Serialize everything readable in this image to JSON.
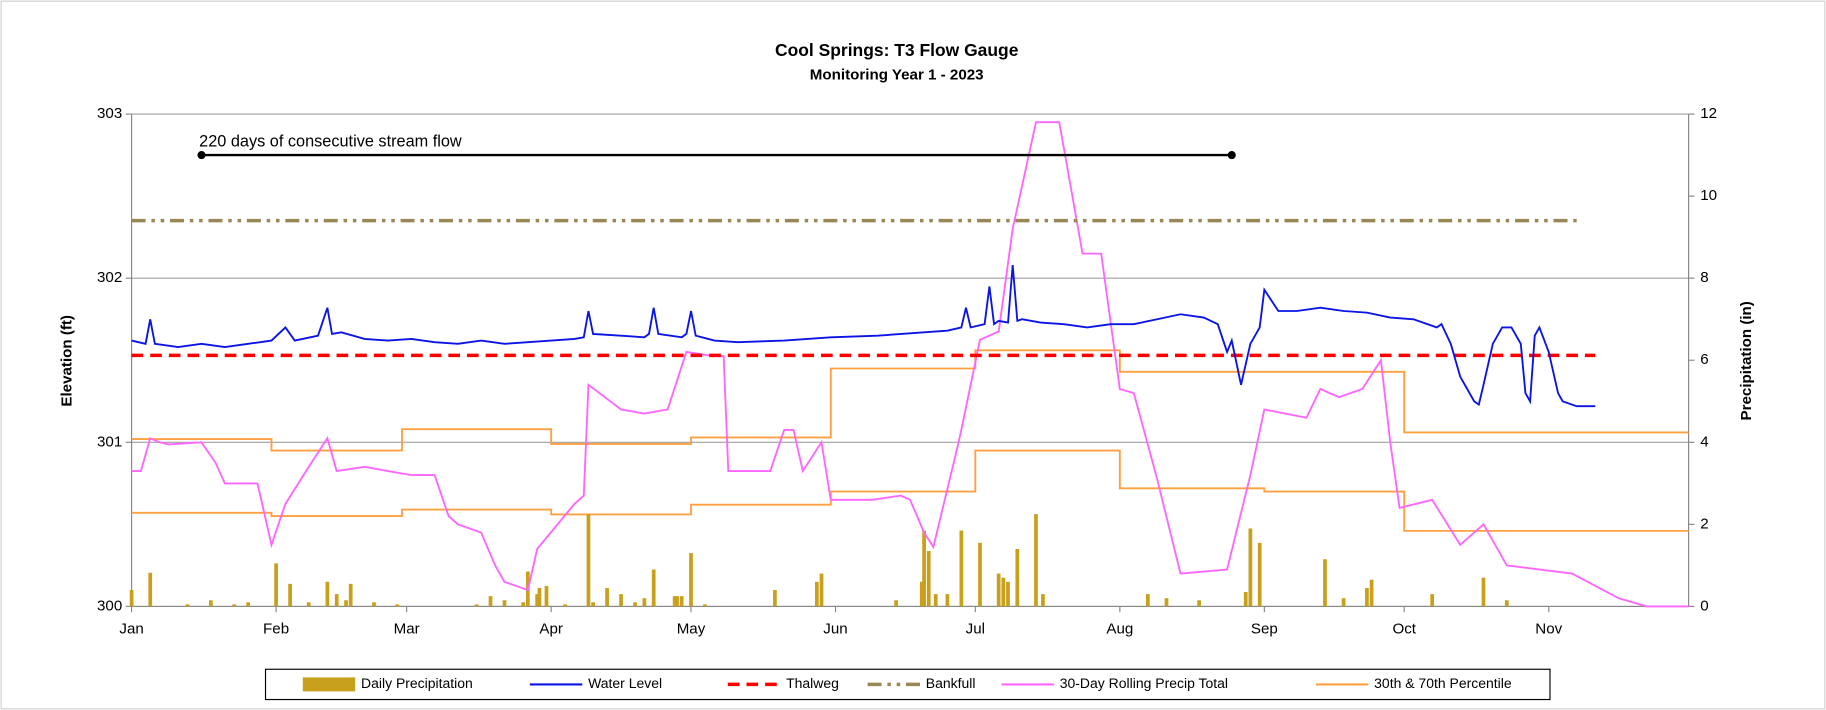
{
  "chart_data": {
    "type": "combo",
    "title": "Cool Springs: T3 Flow Gauge",
    "subtitle": "Monitoring Year 1 - 2023",
    "y_label": "Elevation (ft)",
    "y2_label": "Precipitation (in)",
    "xlim": [
      0,
      334
    ],
    "xticks": [
      {
        "value": 0,
        "label": "Jan"
      },
      {
        "value": 31,
        "label": "Feb"
      },
      {
        "value": 59,
        "label": "Mar"
      },
      {
        "value": 90,
        "label": "Apr"
      },
      {
        "value": 120,
        "label": "May"
      },
      {
        "value": 151,
        "label": "Jun"
      },
      {
        "value": 181,
        "label": "Jul"
      },
      {
        "value": 212,
        "label": "Aug"
      },
      {
        "value": 243,
        "label": "Sep"
      },
      {
        "value": 273,
        "label": "Oct"
      },
      {
        "value": 304,
        "label": "Nov"
      }
    ],
    "ylim": [
      300,
      303
    ],
    "yticks": [
      300,
      301,
      302,
      303
    ],
    "y2lim": [
      0,
      12
    ],
    "y2ticks": [
      0,
      2,
      4,
      6,
      8,
      10,
      12
    ],
    "grid": true,
    "annotation": {
      "text": "220 days of consecutive stream flow",
      "x": [
        15,
        236
      ],
      "y": 302.75
    },
    "series": [
      {
        "name": "Daily Precipitation",
        "color": "#c9a01c",
        "style": "bar",
        "axis": "y2",
        "x": [
          0,
          4,
          12,
          17,
          22,
          25,
          31,
          34,
          38,
          42,
          44,
          46,
          47,
          52,
          57,
          74,
          77,
          80,
          84,
          87,
          89,
          93,
          99,
          102,
          105,
          108,
          110,
          112,
          117,
          123,
          85,
          87.5,
          98,
          112,
          116.5,
          118,
          120,
          138,
          147,
          148,
          164,
          169.5,
          170,
          171,
          172.5,
          175,
          178,
          182,
          186,
          187,
          188,
          190,
          194,
          195.5,
          218,
          222,
          229,
          239,
          240,
          242,
          256,
          260,
          265,
          266,
          279,
          290,
          295
        ],
        "values": [
          0.4,
          0.82,
          0.05,
          0.15,
          0.05,
          0.1,
          1.05,
          0.55,
          0.1,
          0.6,
          0.3,
          0.15,
          0.55,
          0.1,
          0.05,
          0.05,
          0.25,
          0.15,
          0.1,
          0.3,
          0.5,
          0.05,
          0.1,
          0.45,
          0.3,
          0.1,
          0.2,
          0.1,
          0.25,
          0.05,
          0.85,
          0.45,
          2.25,
          0.9,
          0.25,
          0.25,
          1.3,
          0.4,
          0.6,
          0.8,
          0.15,
          0.6,
          1.85,
          1.35,
          0.3,
          0.3,
          1.85,
          1.55,
          0.8,
          0.7,
          0.6,
          1.4,
          2.25,
          0.3,
          0.3,
          0.2,
          0.15,
          0.35,
          1.9,
          1.55,
          1.15,
          0.2,
          0.45,
          0.65,
          0.3,
          0.7,
          0.15
        ]
      },
      {
        "name": "Water Level",
        "color": "#0a14e6",
        "style": "line",
        "x": [
          0,
          3,
          4,
          5,
          10,
          15,
          20,
          25,
          30,
          33,
          35,
          40,
          42,
          43,
          45,
          50,
          55,
          60,
          65,
          70,
          75,
          80,
          85,
          90,
          95,
          97,
          98,
          99,
          105,
          110,
          111,
          112,
          113,
          118,
          119,
          120,
          121,
          125,
          130,
          140,
          150,
          160,
          170,
          175,
          178,
          179,
          180,
          183,
          184,
          185,
          186,
          188,
          189,
          190,
          191,
          195,
          200,
          205,
          210,
          215,
          220,
          225,
          230,
          233,
          235,
          236,
          238,
          240,
          242,
          243,
          246,
          250,
          255,
          260,
          265,
          270,
          275,
          280,
          281,
          283,
          285,
          288,
          289,
          290,
          292,
          294,
          296,
          298,
          299,
          300,
          301,
          302,
          304,
          306,
          307,
          310,
          314
        ],
        "values": [
          301.62,
          301.6,
          301.75,
          301.6,
          301.58,
          301.6,
          301.58,
          301.6,
          301.62,
          301.7,
          301.62,
          301.65,
          301.82,
          301.66,
          301.67,
          301.63,
          301.62,
          301.63,
          301.61,
          301.6,
          301.62,
          301.6,
          301.61,
          301.62,
          301.63,
          301.64,
          301.8,
          301.66,
          301.65,
          301.64,
          301.66,
          301.82,
          301.66,
          301.64,
          301.66,
          301.8,
          301.65,
          301.62,
          301.61,
          301.62,
          301.64,
          301.65,
          301.67,
          301.68,
          301.7,
          301.82,
          301.7,
          301.72,
          301.95,
          301.72,
          301.74,
          301.73,
          302.08,
          301.74,
          301.75,
          301.73,
          301.72,
          301.7,
          301.72,
          301.72,
          301.75,
          301.78,
          301.76,
          301.72,
          301.55,
          301.62,
          301.35,
          301.6,
          301.7,
          301.93,
          301.8,
          301.8,
          301.82,
          301.8,
          301.79,
          301.76,
          301.75,
          301.7,
          301.72,
          301.6,
          301.4,
          301.25,
          301.23,
          301.35,
          301.6,
          301.7,
          301.7,
          301.6,
          301.3,
          301.25,
          301.65,
          301.7,
          301.55,
          301.3,
          301.25,
          301.22,
          301.22
        ]
      },
      {
        "name": "Thalweg",
        "color": "#ff0000",
        "style": "dashed",
        "x": [
          0,
          314
        ],
        "values": [
          301.53,
          301.53
        ]
      },
      {
        "name": "Bankfull",
        "color": "#998855",
        "style": "dashdot",
        "x": [
          0,
          310
        ],
        "values": [
          302.35,
          302.35
        ]
      },
      {
        "name": "30-Day Rolling Precip Total",
        "color": "#ff66ff",
        "style": "line",
        "axis": "y2",
        "x": [
          0,
          2,
          4,
          6,
          8,
          15,
          18,
          20,
          27,
          29,
          30,
          33,
          38,
          42,
          44,
          50,
          55,
          60,
          65,
          68,
          70,
          75,
          78,
          80,
          85,
          87,
          95,
          97,
          98,
          105,
          110,
          115,
          119,
          125,
          127,
          128,
          137,
          140,
          142,
          144,
          148,
          150,
          159,
          165,
          167,
          170,
          172,
          177,
          178,
          182,
          186,
          189,
          194,
          199,
          204,
          208,
          212,
          215,
          220,
          225,
          235,
          240,
          243,
          252,
          255,
          259,
          264,
          268,
          270,
          272,
          279,
          285,
          290,
          295,
          309,
          319,
          325,
          334
        ],
        "values": [
          3.3,
          3.3,
          4.1,
          4.0,
          3.95,
          4.0,
          3.5,
          3.0,
          3.0,
          2.0,
          1.5,
          2.5,
          3.4,
          4.1,
          3.3,
          3.4,
          3.3,
          3.2,
          3.2,
          2.2,
          2.0,
          1.8,
          1.0,
          0.6,
          0.4,
          1.4,
          2.5,
          2.7,
          5.4,
          4.8,
          4.7,
          4.8,
          6.2,
          6.1,
          6.1,
          3.3,
          3.3,
          4.3,
          4.3,
          3.3,
          4.0,
          2.6,
          2.6,
          2.7,
          2.6,
          1.8,
          1.45,
          3.8,
          4.3,
          6.5,
          6.7,
          9.2,
          11.8,
          11.8,
          8.6,
          8.6,
          5.3,
          5.2,
          3.1,
          0.8,
          0.9,
          3.2,
          4.8,
          4.6,
          5.3,
          5.1,
          5.3,
          6.0,
          4.0,
          2.4,
          2.6,
          1.5,
          2.0,
          1.0,
          0.8,
          0.2,
          0,
          0
        ]
      },
      {
        "name": "30th & 70th Percentile",
        "color": "#ffa040",
        "style": "line",
        "lines": [
          {
            "x": [
              0,
              30,
              30,
              58,
              58,
              90,
              90,
              120,
              120,
              150,
              150,
              181,
              181,
              212,
              212,
              273,
              273,
              334
            ],
            "values": [
              301.02,
              301.02,
              300.95,
              300.95,
              301.08,
              301.08,
              300.99,
              300.99,
              301.03,
              301.03,
              301.45,
              301.45,
              301.56,
              301.56,
              301.43,
              301.43,
              301.06,
              301.06
            ]
          },
          {
            "x": [
              0,
              30,
              30,
              58,
              58,
              90,
              90,
              120,
              120,
              150,
              150,
              181,
              181,
              212,
              212,
              243,
              243,
              273,
              273,
              334
            ],
            "values": [
              300.57,
              300.57,
              300.55,
              300.55,
              300.59,
              300.59,
              300.56,
              300.56,
              300.62,
              300.62,
              300.7,
              300.7,
              300.95,
              300.95,
              300.72,
              300.72,
              300.7,
              300.7,
              300.46,
              300.46
            ]
          }
        ]
      }
    ]
  }
}
